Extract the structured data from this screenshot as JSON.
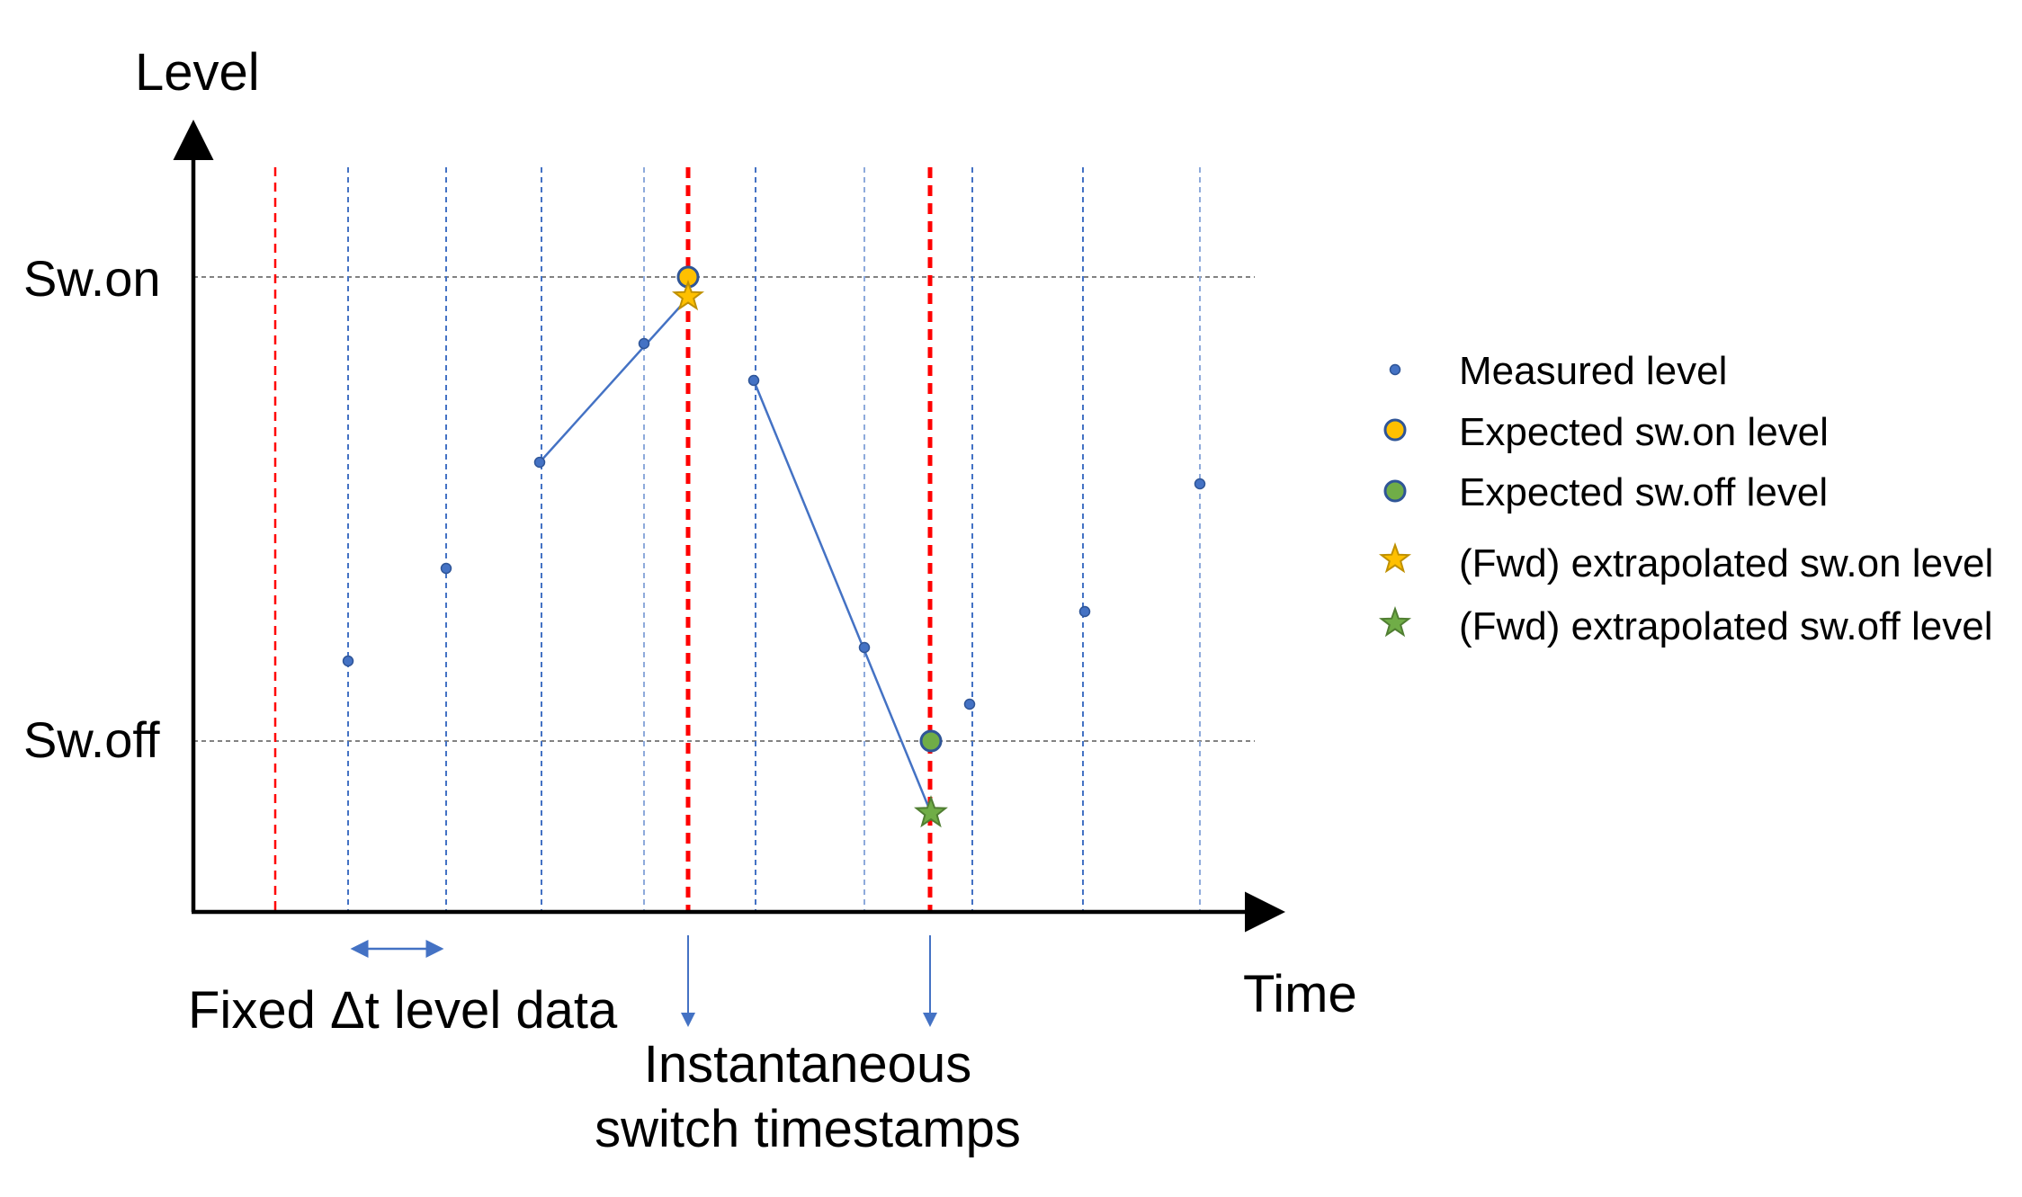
{
  "labels": {
    "y_axis": "Level",
    "x_axis": "Time",
    "sw_on": "Sw.on",
    "sw_off": "Sw.off",
    "fixed_dt": "Fixed Δt level data",
    "instant_line1": "Instantaneous",
    "instant_line2": "switch timestamps"
  },
  "legend": [
    {
      "id": "measured",
      "label": "Measured level",
      "marker": "small-dot"
    },
    {
      "id": "expected_on",
      "label": "Expected sw.on level",
      "marker": "circle-orange"
    },
    {
      "id": "expected_off",
      "label": "Expected sw.off level",
      "marker": "circle-green"
    },
    {
      "id": "extrap_on",
      "label": "(Fwd) extrapolated sw.on level",
      "marker": "star-orange"
    },
    {
      "id": "extrap_off",
      "label": "(Fwd) extrapolated sw.off level",
      "marker": "star-green"
    }
  ],
  "colors": {
    "axis": "#000000",
    "sample_line": "#4472c4",
    "switch_line": "#ff0000",
    "marker": "#4472c4",
    "marker_edge": "#2f5597",
    "on_color": "#ffc000",
    "off_color": "#70ad47",
    "grid": "#595959"
  }
}
